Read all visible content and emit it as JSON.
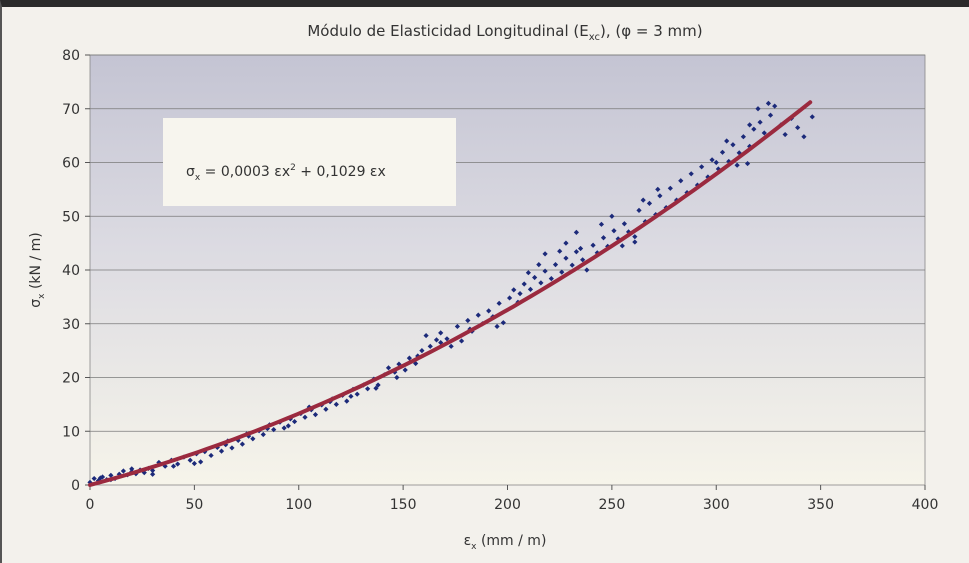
{
  "chart_data": {
    "type": "scatter",
    "title_main": "Módulo de Elasticidad Longitudinal (E",
    "title_sub": "xc",
    "title_end": "), (φ = 3 mm)",
    "xlabel_main": "ε",
    "xlabel_sub": "x",
    "xlabel_end": " (mm / m)",
    "ylabel_main": "σ",
    "ylabel_sub": "x",
    "ylabel_end": " (kN / m)",
    "xlim": [
      0,
      400
    ],
    "ylim": [
      0,
      80
    ],
    "xticks": [
      "0",
      "50",
      "100",
      "150",
      "200",
      "250",
      "300",
      "350",
      "400"
    ],
    "yticks": [
      "0",
      "10",
      "20",
      "30",
      "40",
      "50",
      "60",
      "70",
      "80"
    ],
    "grid": true,
    "equation": {
      "p1": "σ",
      "p1_sub": "x",
      "p2": " = 0,0003 εx",
      "p2_sup": "2",
      "p3": " + 0,1029 εx"
    },
    "trend": {
      "a": 0.0003,
      "b": 0.1029,
      "x_range": [
        0,
        345
      ],
      "color": "#9b2a3f"
    },
    "point_color": "#1c2a7a",
    "series": [
      {
        "values": [
          [
            0,
            0.5
          ],
          [
            2,
            1.2
          ],
          [
            4,
            0.8
          ],
          [
            6,
            1.5
          ],
          [
            8,
            1.0
          ],
          [
            10,
            1.8
          ],
          [
            12,
            1.2
          ],
          [
            14,
            2.0
          ],
          [
            16,
            2.6
          ],
          [
            18,
            1.9
          ],
          [
            20,
            2.5
          ],
          [
            22,
            2.1
          ],
          [
            24,
            2.8
          ],
          [
            26,
            2.3
          ],
          [
            28,
            3.1
          ],
          [
            30,
            2.7
          ],
          [
            33,
            4.2
          ],
          [
            36,
            3.5
          ],
          [
            39,
            4.6
          ],
          [
            42,
            3.9
          ],
          [
            45,
            5.2
          ],
          [
            48,
            4.6
          ],
          [
            51,
            5.8
          ],
          [
            53,
            4.3
          ],
          [
            55,
            6.2
          ],
          [
            58,
            5.5
          ],
          [
            61,
            7.0
          ],
          [
            63,
            6.3
          ],
          [
            66,
            8.2
          ],
          [
            68,
            6.9
          ],
          [
            71,
            8.3
          ],
          [
            73,
            7.6
          ],
          [
            76,
            9.1
          ],
          [
            78,
            8.6
          ],
          [
            81,
            10.1
          ],
          [
            83,
            9.4
          ],
          [
            86,
            11.2
          ],
          [
            88,
            10.3
          ],
          [
            91,
            11.7
          ],
          [
            93,
            10.6
          ],
          [
            96,
            12.3
          ],
          [
            98,
            11.8
          ],
          [
            101,
            13.3
          ],
          [
            103,
            12.6
          ],
          [
            106,
            14.0
          ],
          [
            108,
            13.1
          ],
          [
            111,
            14.9
          ],
          [
            113,
            14.1
          ],
          [
            116,
            16.0
          ],
          [
            118,
            15.0
          ],
          [
            121,
            16.7
          ],
          [
            123,
            15.6
          ],
          [
            126,
            17.8
          ],
          [
            128,
            16.9
          ],
          [
            131,
            18.6
          ],
          [
            133,
            17.9
          ],
          [
            136,
            19.7
          ],
          [
            138,
            18.6
          ],
          [
            141,
            20.5
          ],
          [
            143,
            21.8
          ],
          [
            146,
            21.0
          ],
          [
            148,
            22.5
          ],
          [
            151,
            21.4
          ],
          [
            153,
            23.6
          ],
          [
            156,
            22.6
          ],
          [
            159,
            25.0
          ],
          [
            161,
            27.8
          ],
          [
            163,
            25.8
          ],
          [
            166,
            27.0
          ],
          [
            168,
            28.3
          ],
          [
            171,
            27.2
          ],
          [
            173,
            25.8
          ],
          [
            176,
            29.5
          ],
          [
            178,
            26.8
          ],
          [
            181,
            30.6
          ],
          [
            183,
            28.6
          ],
          [
            186,
            31.6
          ],
          [
            188,
            30.0
          ],
          [
            191,
            32.4
          ],
          [
            193,
            31.3
          ],
          [
            196,
            33.8
          ],
          [
            198,
            30.2
          ],
          [
            201,
            34.8
          ],
          [
            203,
            36.3
          ],
          [
            206,
            35.6
          ],
          [
            208,
            37.4
          ],
          [
            211,
            36.4
          ],
          [
            213,
            38.6
          ],
          [
            216,
            37.6
          ],
          [
            218,
            39.8
          ],
          [
            221,
            38.4
          ],
          [
            223,
            41.0
          ],
          [
            226,
            39.6
          ],
          [
            228,
            42.2
          ],
          [
            231,
            40.9
          ],
          [
            233,
            43.4
          ],
          [
            236,
            41.9
          ],
          [
            238,
            40.0
          ],
          [
            241,
            44.6
          ],
          [
            243,
            43.2
          ],
          [
            246,
            46.0
          ],
          [
            248,
            44.4
          ],
          [
            251,
            47.3
          ],
          [
            253,
            45.8
          ],
          [
            256,
            48.6
          ],
          [
            258,
            47.1
          ],
          [
            261,
            46.2
          ],
          [
            263,
            51.1
          ],
          [
            266,
            49.0
          ],
          [
            268,
            52.4
          ],
          [
            271,
            50.3
          ],
          [
            273,
            53.8
          ],
          [
            276,
            51.6
          ],
          [
            278,
            55.2
          ],
          [
            281,
            53.0
          ],
          [
            283,
            56.6
          ],
          [
            286,
            54.4
          ],
          [
            288,
            57.9
          ],
          [
            291,
            55.8
          ],
          [
            293,
            59.2
          ],
          [
            296,
            57.3
          ],
          [
            298,
            60.5
          ],
          [
            301,
            58.8
          ],
          [
            303,
            61.9
          ],
          [
            306,
            60.2
          ],
          [
            308,
            63.3
          ],
          [
            311,
            61.8
          ],
          [
            313,
            64.8
          ],
          [
            316,
            63.0
          ],
          [
            318,
            66.2
          ],
          [
            321,
            67.5
          ],
          [
            323,
            65.5
          ],
          [
            326,
            68.8
          ],
          [
            328,
            70.5
          ],
          [
            331,
            67.0
          ],
          [
            333,
            65.2
          ],
          [
            336,
            68.2
          ],
          [
            339,
            66.5
          ],
          [
            342,
            64.8
          ],
          [
            346,
            68.5
          ],
          [
            300,
            60.0
          ],
          [
            305,
            64.0
          ],
          [
            310,
            59.5
          ],
          [
            316,
            67.0
          ],
          [
            320,
            70.0
          ],
          [
            325,
            71.0
          ],
          [
            315,
            59.8
          ],
          [
            261,
            45.2
          ],
          [
            255,
            44.5
          ],
          [
            250,
            50.0
          ],
          [
            245,
            48.5
          ],
          [
            228,
            45.0
          ],
          [
            233,
            47.0
          ],
          [
            218,
            43.0
          ],
          [
            210,
            39.5
          ],
          [
            205,
            34.0
          ],
          [
            195,
            29.5
          ],
          [
            182,
            29.0
          ],
          [
            168,
            26.5
          ],
          [
            157,
            24.0
          ],
          [
            147,
            20.0
          ],
          [
            137,
            18.0
          ],
          [
            125,
            16.5
          ],
          [
            115,
            15.5
          ],
          [
            105,
            14.5
          ],
          [
            95,
            11.0
          ],
          [
            85,
            10.5
          ],
          [
            75,
            9.5
          ],
          [
            65,
            7.5
          ],
          [
            50,
            4.0
          ],
          [
            40,
            3.5
          ],
          [
            30,
            2.0
          ],
          [
            20,
            3.0
          ],
          [
            10,
            1.0
          ],
          [
            5,
            1.3
          ],
          [
            215,
            41.0
          ],
          [
            225,
            43.5
          ],
          [
            235,
            44.0
          ],
          [
            265,
            53.0
          ],
          [
            272,
            55.0
          ]
        ]
      }
    ]
  }
}
